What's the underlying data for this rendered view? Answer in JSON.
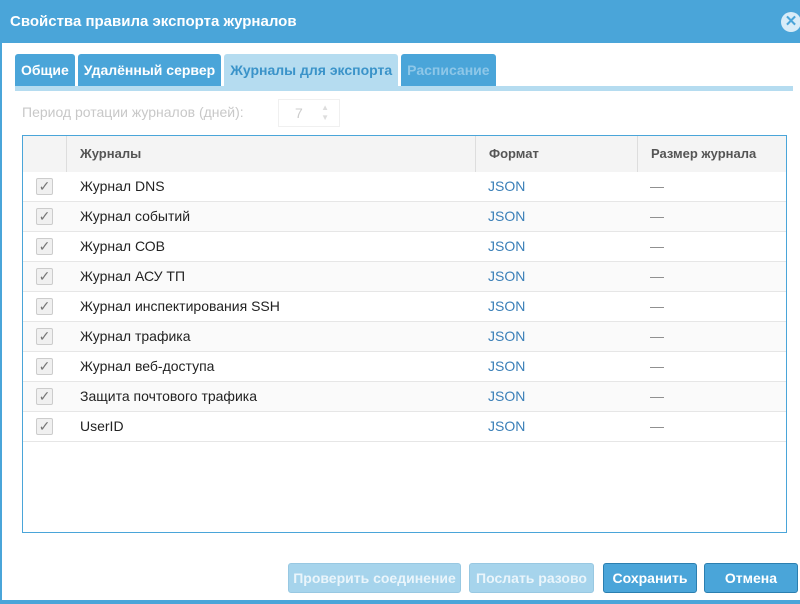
{
  "title": "Свойства правила экспорта журналов",
  "tabs": [
    {
      "label": "Общие"
    },
    {
      "label": "Удалённый сервер"
    },
    {
      "label": "Журналы для экспорта"
    },
    {
      "label": "Расписание"
    }
  ],
  "period": {
    "label": "Период ротации журналов (дней):",
    "value": "7"
  },
  "columns": {
    "logs": "Журналы",
    "format": "Формат",
    "size": "Размер журнала"
  },
  "rows": [
    {
      "name": "Журнал DNS",
      "format": "JSON",
      "size": "—",
      "checked": true
    },
    {
      "name": "Журнал событий",
      "format": "JSON",
      "size": "—",
      "checked": true
    },
    {
      "name": "Журнал СОВ",
      "format": "JSON",
      "size": "—",
      "checked": true
    },
    {
      "name": "Журнал АСУ ТП",
      "format": "JSON",
      "size": "—",
      "checked": true
    },
    {
      "name": "Журнал инспектирования SSH",
      "format": "JSON",
      "size": "—",
      "checked": true
    },
    {
      "name": "Журнал трафика",
      "format": "JSON",
      "size": "—",
      "checked": true
    },
    {
      "name": "Журнал веб-доступа",
      "format": "JSON",
      "size": "—",
      "checked": true
    },
    {
      "name": "Защита почтового трафика",
      "format": "JSON",
      "size": "—",
      "checked": true
    },
    {
      "name": "UserID",
      "format": "JSON",
      "size": "—",
      "checked": true
    }
  ],
  "buttons": {
    "check": "Проверить соединение",
    "send": "Послать разово",
    "save": "Сохранить",
    "cancel": "Отмена"
  },
  "icons": {
    "close": "close-icon",
    "check": "checkmark-icon"
  },
  "colors": {
    "accent": "#4aa5d9"
  }
}
